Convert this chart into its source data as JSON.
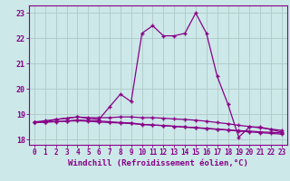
{
  "xlabel": "Windchill (Refroidissement éolien,°C)",
  "xlim": [
    -0.5,
    23.5
  ],
  "ylim": [
    17.8,
    23.3
  ],
  "yticks": [
    18,
    19,
    20,
    21,
    22,
    23
  ],
  "xticks": [
    0,
    1,
    2,
    3,
    4,
    5,
    6,
    7,
    8,
    9,
    10,
    11,
    12,
    13,
    14,
    15,
    16,
    17,
    18,
    19,
    20,
    21,
    22,
    23
  ],
  "bg_color": "#cce8e8",
  "line_color": "#880088",
  "grid_color": "#b0c8c8",
  "line1_x": [
    0,
    1,
    2,
    3,
    4,
    5,
    6,
    7,
    8,
    9,
    10,
    11,
    12,
    13,
    14,
    15,
    16,
    17,
    18,
    19,
    20,
    21,
    22,
    23
  ],
  "line1_y": [
    18.7,
    18.7,
    18.8,
    18.85,
    18.9,
    18.85,
    18.8,
    19.3,
    19.8,
    19.5,
    22.2,
    22.5,
    22.1,
    22.1,
    22.2,
    23.0,
    22.2,
    20.5,
    19.4,
    18.1,
    18.5,
    18.5,
    18.4,
    18.3
  ],
  "line2_x": [
    0,
    1,
    2,
    3,
    4,
    5,
    6,
    7,
    8,
    9,
    10,
    11,
    12,
    13,
    14,
    15,
    16,
    17,
    18,
    19,
    20,
    21,
    22,
    23
  ],
  "line2_y": [
    18.7,
    18.75,
    18.8,
    18.85,
    18.9,
    18.87,
    18.87,
    18.87,
    18.9,
    18.9,
    18.87,
    18.87,
    18.85,
    18.82,
    18.8,
    18.77,
    18.73,
    18.68,
    18.63,
    18.57,
    18.52,
    18.47,
    18.42,
    18.37
  ],
  "line3_x": [
    0,
    1,
    2,
    3,
    4,
    5,
    6,
    7,
    8,
    9,
    10,
    11,
    12,
    13,
    14,
    15,
    16,
    17,
    18,
    19,
    20,
    21,
    22,
    23
  ],
  "line3_y": [
    18.7,
    18.71,
    18.72,
    18.73,
    18.75,
    18.73,
    18.7,
    18.68,
    18.66,
    18.64,
    18.6,
    18.58,
    18.56,
    18.53,
    18.5,
    18.48,
    18.45,
    18.42,
    18.39,
    18.36,
    18.34,
    18.31,
    18.29,
    18.27
  ],
  "line4_x": [
    0,
    1,
    2,
    3,
    4,
    5,
    6,
    7,
    8,
    9,
    10,
    11,
    12,
    13,
    14,
    15,
    16,
    17,
    18,
    19,
    20,
    21,
    22,
    23
  ],
  "line4_y": [
    18.68,
    18.69,
    18.71,
    18.74,
    18.78,
    18.76,
    18.74,
    18.71,
    18.68,
    18.66,
    18.61,
    18.58,
    18.56,
    18.53,
    18.5,
    18.47,
    18.44,
    18.41,
    18.38,
    18.34,
    18.31,
    18.28,
    18.25,
    18.22
  ]
}
